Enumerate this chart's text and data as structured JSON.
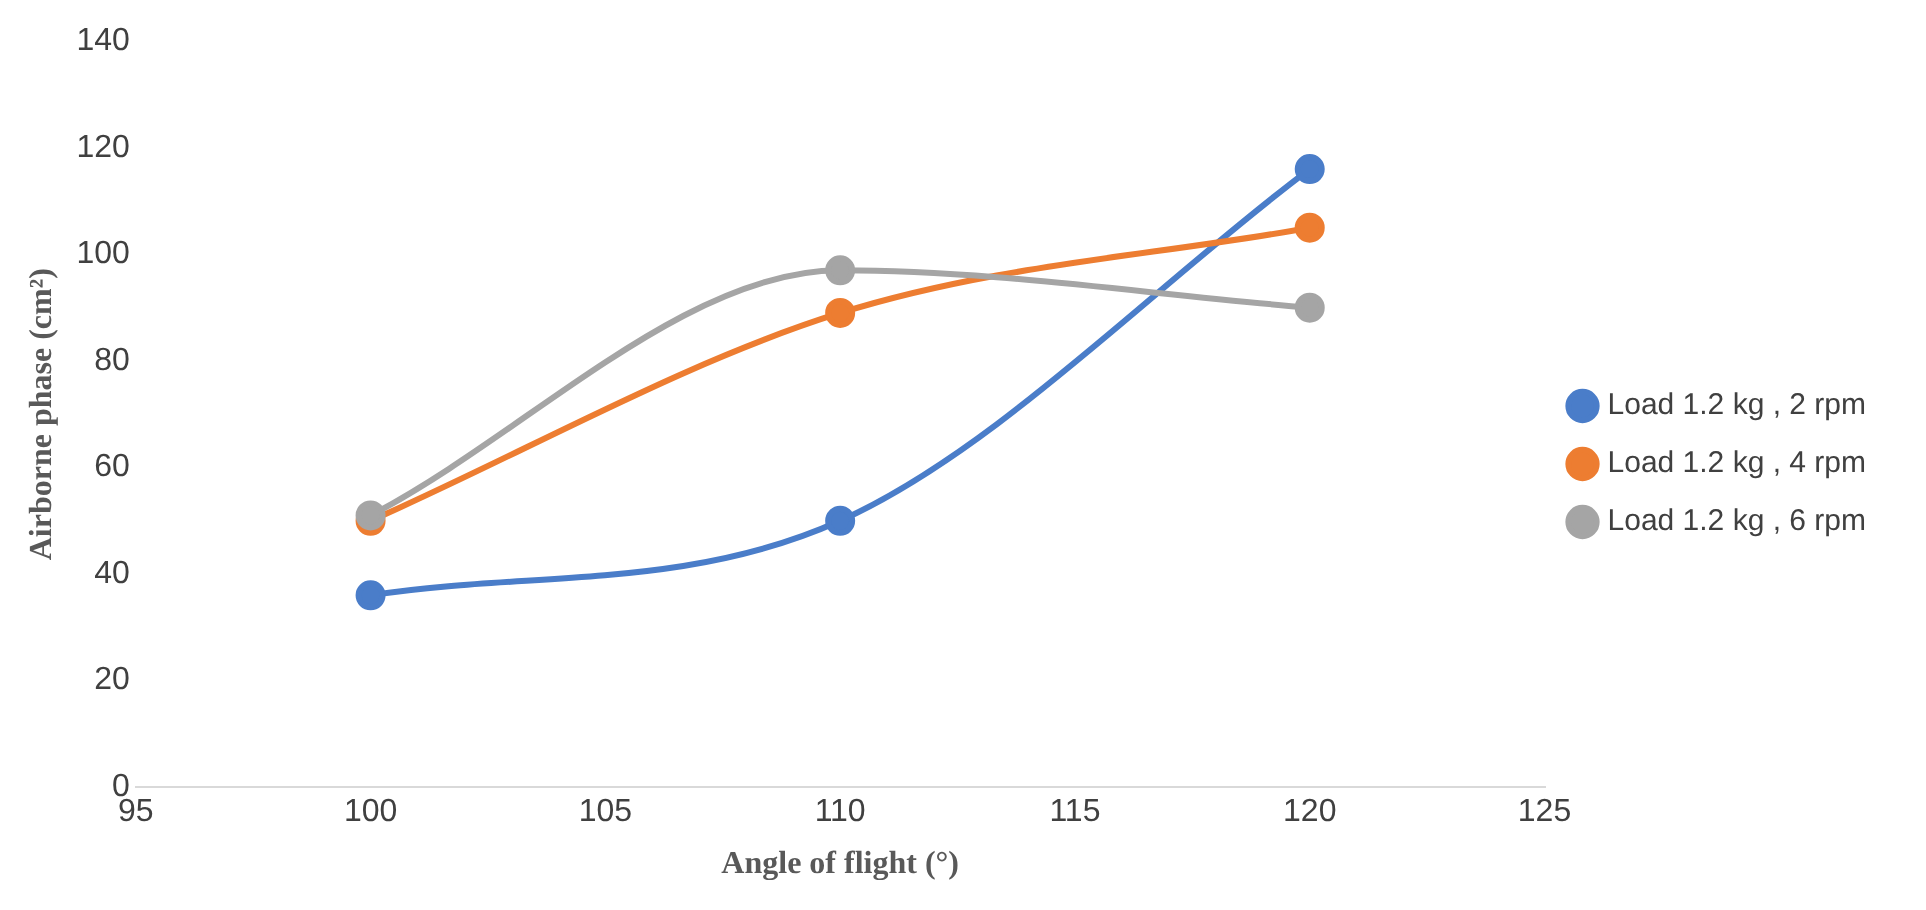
{
  "chart_data": {
    "type": "line",
    "xlabel": "Angle of flight (°)",
    "ylabel": "Airborne phase (cm²)",
    "x": [
      100,
      110,
      120
    ],
    "series": [
      {
        "name": "Load 1.2 kg , 2 rpm",
        "color": "#4a7dc9",
        "values": [
          36,
          50,
          116
        ]
      },
      {
        "name": "Load 1.2 kg , 4 rpm",
        "color": "#ed7d31",
        "values": [
          50,
          89,
          105
        ]
      },
      {
        "name": "Load 1.2 kg , 6 rpm",
        "color": "#a5a5a5",
        "values": [
          51,
          97,
          90
        ]
      }
    ],
    "xlim": [
      95,
      125
    ],
    "xticks": [
      95,
      100,
      105,
      110,
      115,
      120,
      125
    ],
    "ylim": [
      0,
      140
    ],
    "yticks": [
      0,
      20,
      40,
      60,
      80,
      100,
      120,
      140
    ],
    "grid": false,
    "legend": "right",
    "marker": "circle",
    "line_style": "solid"
  }
}
